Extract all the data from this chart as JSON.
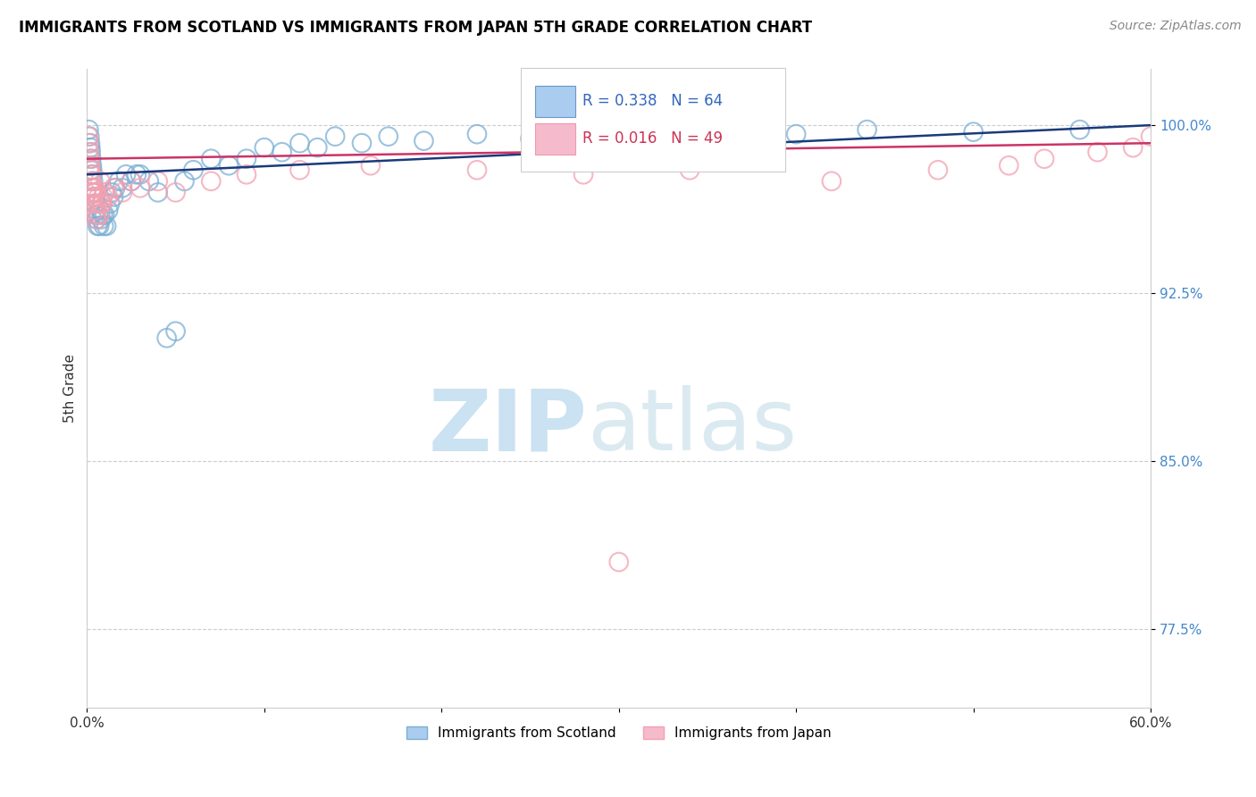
{
  "title": "IMMIGRANTS FROM SCOTLAND VS IMMIGRANTS FROM JAPAN 5TH GRADE CORRELATION CHART",
  "source": "Source: ZipAtlas.com",
  "ylabel": "5th Grade",
  "xlim": [
    0.0,
    60.0
  ],
  "ylim": [
    74.0,
    102.5
  ],
  "yticks": [
    77.5,
    85.0,
    92.5,
    100.0
  ],
  "xticks": [
    0.0,
    10.0,
    20.0,
    30.0,
    40.0,
    50.0,
    60.0
  ],
  "xtick_labels": [
    "0.0%",
    "",
    "",
    "",
    "",
    "",
    "60.0%"
  ],
  "ytick_labels": [
    "77.5%",
    "85.0%",
    "92.5%",
    "100.0%"
  ],
  "scotland_color": "#7BAFD4",
  "japan_color": "#F4A0B0",
  "scotland_line_color": "#1a3a7a",
  "japan_line_color": "#cc3366",
  "scotland_R": 0.338,
  "scotland_N": 64,
  "japan_R": 0.016,
  "japan_N": 49,
  "watermark_zip": "ZIP",
  "watermark_atlas": "atlas",
  "legend_label_scotland": "Immigrants from Scotland",
  "legend_label_japan": "Immigrants from Japan",
  "scotland_x": [
    0.1,
    0.15,
    0.18,
    0.2,
    0.22,
    0.25,
    0.28,
    0.3,
    0.32,
    0.35,
    0.38,
    0.4,
    0.42,
    0.45,
    0.48,
    0.5,
    0.55,
    0.6,
    0.65,
    0.7,
    0.75,
    0.8,
    0.85,
    0.9,
    0.95,
    1.0,
    1.1,
    1.2,
    1.3,
    1.4,
    1.5,
    1.6,
    1.8,
    2.0,
    2.2,
    2.5,
    2.8,
    3.0,
    3.5,
    4.0,
    4.5,
    5.0,
    5.5,
    6.0,
    7.0,
    8.0,
    9.0,
    10.0,
    11.0,
    12.0,
    13.0,
    14.0,
    15.5,
    17.0,
    19.0,
    22.0,
    25.0,
    28.0,
    32.0,
    36.0,
    40.0,
    44.0,
    50.0,
    56.0
  ],
  "scotland_y": [
    99.8,
    99.5,
    99.2,
    99.0,
    98.8,
    98.5,
    98.2,
    98.0,
    97.8,
    97.5,
    97.2,
    97.0,
    96.8,
    96.5,
    96.2,
    96.0,
    95.8,
    95.5,
    96.0,
    95.5,
    96.2,
    95.8,
    96.5,
    96.0,
    95.5,
    96.0,
    95.5,
    96.2,
    96.5,
    97.0,
    96.8,
    97.2,
    97.5,
    97.2,
    97.8,
    97.5,
    97.8,
    97.8,
    97.5,
    97.0,
    90.5,
    90.8,
    97.5,
    98.0,
    98.5,
    98.2,
    98.5,
    99.0,
    98.8,
    99.2,
    99.0,
    99.5,
    99.2,
    99.5,
    99.3,
    99.6,
    99.4,
    99.7,
    99.5,
    99.8,
    99.6,
    99.8,
    99.7,
    99.8
  ],
  "japan_x": [
    0.08,
    0.1,
    0.12,
    0.15,
    0.18,
    0.2,
    0.22,
    0.25,
    0.28,
    0.3,
    0.35,
    0.4,
    0.45,
    0.5,
    0.55,
    0.6,
    0.7,
    0.8,
    0.9,
    1.0,
    1.2,
    1.5,
    2.0,
    2.5,
    3.0,
    4.0,
    5.0,
    7.0,
    9.0,
    12.0,
    16.0,
    22.0,
    28.0,
    34.0,
    42.0,
    48.0,
    52.0,
    54.0,
    57.0,
    59.0,
    60.0,
    0.32,
    0.38,
    0.42,
    0.48,
    0.65,
    0.75,
    0.85,
    30.0
  ],
  "japan_y": [
    99.5,
    99.2,
    98.8,
    98.5,
    98.2,
    98.0,
    97.8,
    97.5,
    97.2,
    97.0,
    96.8,
    96.5,
    96.2,
    96.0,
    95.8,
    96.5,
    96.0,
    96.5,
    96.8,
    97.0,
    96.8,
    97.2,
    97.0,
    97.5,
    97.2,
    97.5,
    97.0,
    97.5,
    97.8,
    98.0,
    98.2,
    98.0,
    97.8,
    98.0,
    97.5,
    98.0,
    98.2,
    98.5,
    98.8,
    99.0,
    99.5,
    97.0,
    96.8,
    97.2,
    97.0,
    96.8,
    97.5,
    96.5,
    80.5
  ]
}
